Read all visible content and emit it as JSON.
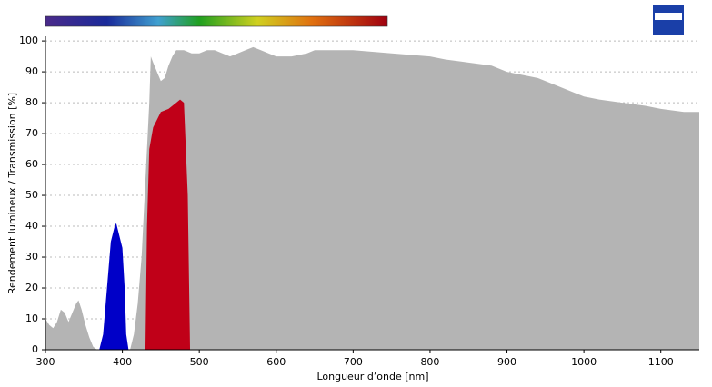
{
  "chart_data": {
    "type": "area",
    "xlabel": "Longueur d’onde [nm]",
    "ylabel": "Rendement lumineux / Transmission [%]",
    "xlim": [
      300,
      1150
    ],
    "xticks": [
      300,
      400,
      500,
      600,
      700,
      800,
      900,
      1000,
      1100
    ],
    "ylim": [
      0,
      101.5
    ],
    "yticks": [
      0,
      10,
      20,
      30,
      40,
      50,
      60,
      70,
      80,
      90,
      100
    ],
    "grid": true,
    "series": [
      {
        "color": "#b4b4b4",
        "x": [
          300,
          305,
          310,
          315,
          320,
          325,
          330,
          335,
          340,
          343,
          347,
          352,
          357,
          362,
          367,
          410,
          415,
          420,
          425,
          430,
          435,
          437,
          440,
          445,
          450,
          455,
          460,
          465,
          470,
          480,
          490,
          500,
          510,
          520,
          530,
          540,
          550,
          560,
          570,
          580,
          590,
          600,
          620,
          640,
          650,
          700,
          750,
          800,
          820,
          850,
          880,
          900,
          920,
          940,
          960,
          980,
          1000,
          1020,
          1050,
          1080,
          1100,
          1130,
          1150
        ],
        "values": [
          10,
          8,
          7,
          9,
          13,
          12,
          9,
          12,
          15,
          16,
          13,
          8,
          4,
          1,
          0,
          0,
          5,
          15,
          30,
          55,
          80,
          95,
          93,
          90,
          87,
          88,
          92,
          95,
          97,
          97,
          96,
          96,
          97,
          97,
          96,
          95,
          96,
          97,
          98,
          97,
          96,
          95,
          95,
          96,
          97,
          97,
          96,
          95,
          94,
          93,
          92,
          90,
          89,
          88,
          86,
          84,
          82,
          81,
          80,
          79,
          78,
          77,
          77
        ]
      },
      {
        "color": "#0000c8",
        "x": [
          370,
          375,
          380,
          385,
          390,
          392,
          395,
          400,
          403,
          405,
          408
        ],
        "values": [
          0,
          5,
          20,
          35,
          40,
          41,
          38,
          33,
          20,
          5,
          0
        ]
      },
      {
        "color": "#c00018",
        "x": [
          430,
          432,
          435,
          440,
          450,
          460,
          470,
          475,
          480,
          485,
          488
        ],
        "values": [
          0,
          40,
          65,
          72,
          77,
          78,
          80,
          81,
          80,
          50,
          0
        ]
      }
    ]
  }
}
